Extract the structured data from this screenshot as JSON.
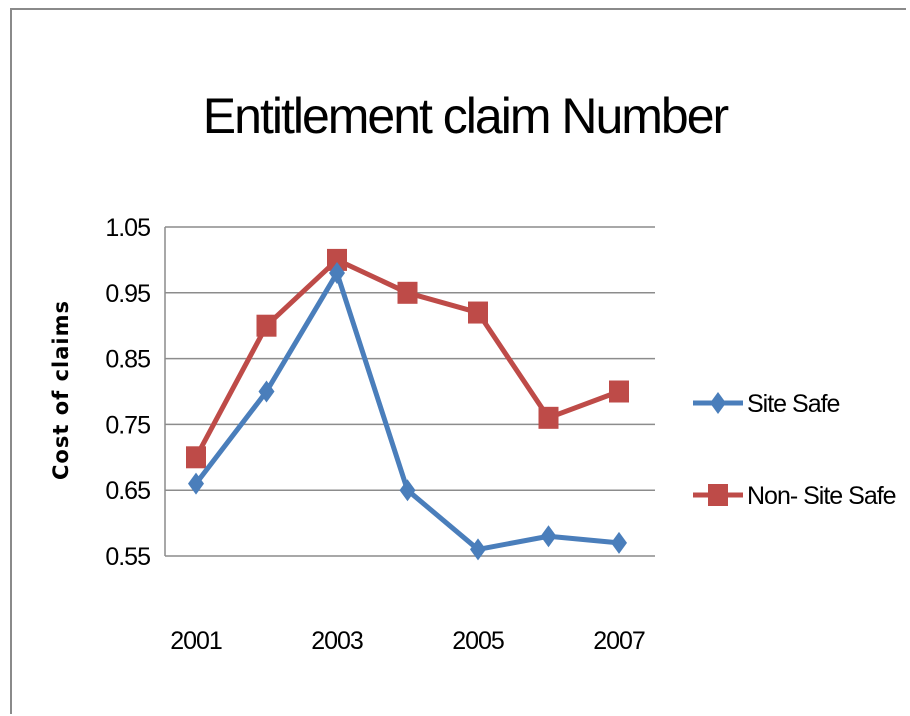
{
  "chart_data": {
    "type": "line",
    "title": "Entitlement claim Number",
    "xlabel": "",
    "ylabel": "Cost of claims",
    "x": [
      2001,
      2002,
      2003,
      2004,
      2005,
      2006,
      2007
    ],
    "x_tick_labels": [
      "2001",
      "2003",
      "2005",
      "2007"
    ],
    "y_tick_labels": [
      "1.05",
      "0.95",
      "0.85",
      "0.75",
      "0.65",
      "0.55"
    ],
    "ylim": [
      0.55,
      1.05
    ],
    "grid": true,
    "legend_position": "right",
    "series": [
      {
        "name": "Site Safe",
        "color": "#4a7ebb",
        "marker": "diamond",
        "values": [
          0.66,
          0.8,
          0.98,
          0.65,
          0.56,
          0.58,
          0.57
        ]
      },
      {
        "name": "Non- Site Safe",
        "color": "#be4b48",
        "marker": "square",
        "values": [
          0.7,
          0.9,
          1.0,
          0.95,
          0.92,
          0.76,
          0.8
        ]
      }
    ]
  }
}
